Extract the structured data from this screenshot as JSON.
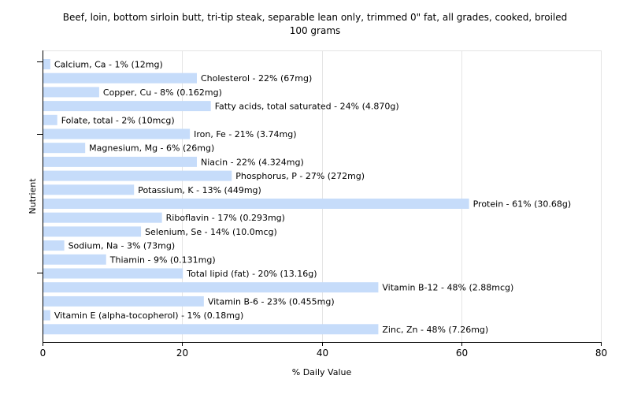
{
  "chart_data": {
    "type": "bar",
    "orientation": "horizontal",
    "title": "Beef, loin, bottom sirloin butt, tri-tip steak, separable lean only, trimmed 0\" fat, all grades, cooked, broiled",
    "subtitle": "100 grams",
    "xlabel": "% Daily Value",
    "ylabel": "Nutrient",
    "xlim": [
      0,
      80
    ],
    "xticks": [
      0,
      20,
      40,
      60,
      80
    ],
    "grid": true,
    "bar_color": "#c6dcfa",
    "categories": [
      "Calcium, Ca",
      "Cholesterol",
      "Copper, Cu",
      "Fatty acids, total saturated",
      "Folate, total",
      "Iron, Fe",
      "Magnesium, Mg",
      "Niacin",
      "Phosphorus, P",
      "Potassium, K",
      "Protein",
      "Riboflavin",
      "Selenium, Se",
      "Sodium, Na",
      "Thiamin",
      "Total lipid (fat)",
      "Vitamin B-12",
      "Vitamin B-6",
      "Vitamin E (alpha-tocopherol)",
      "Zinc, Zn"
    ],
    "values": [
      1,
      22,
      8,
      24,
      2,
      21,
      6,
      22,
      27,
      13,
      61,
      17,
      14,
      3,
      9,
      20,
      48,
      23,
      1,
      48
    ],
    "labels": [
      "Calcium, Ca - 1% (12mg)",
      "Cholesterol - 22% (67mg)",
      "Copper, Cu - 8% (0.162mg)",
      "Fatty acids, total saturated - 24% (4.870g)",
      "Folate, total - 2% (10mcg)",
      "Iron, Fe - 21% (3.74mg)",
      "Magnesium, Mg - 6% (26mg)",
      "Niacin - 22% (4.324mg)",
      "Phosphorus, P - 27% (272mg)",
      "Potassium, K - 13% (449mg)",
      "Protein - 61% (30.68g)",
      "Riboflavin - 17% (0.293mg)",
      "Selenium, Se - 14% (10.0mcg)",
      "Sodium, Na - 3% (73mg)",
      "Thiamin - 9% (0.131mg)",
      "Total lipid (fat) - 20% (13.16g)",
      "Vitamin B-12 - 48% (2.88mcg)",
      "Vitamin B-6 - 23% (0.455mg)",
      "Vitamin E (alpha-tocopherol) - 1% (0.18mg)",
      "Zinc, Zn - 48% (7.26mg)"
    ]
  }
}
